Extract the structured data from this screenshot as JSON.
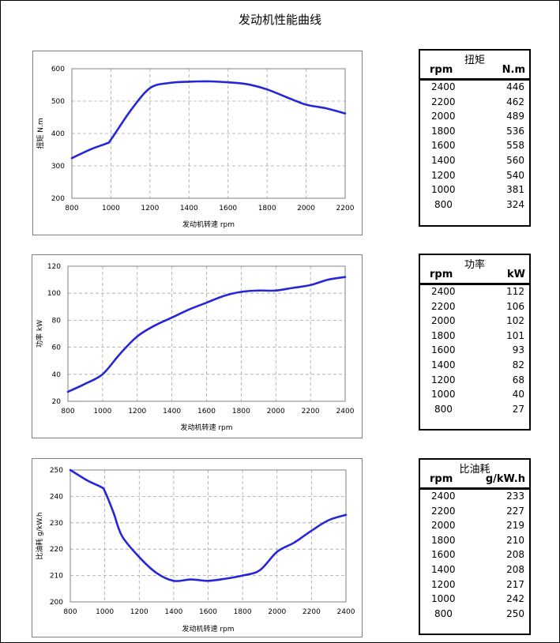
{
  "page_title": "发动机性能曲线",
  "chart_data": [
    {
      "type": "line",
      "ylabel": "扭矩 N.m",
      "xlabel": "发动机转速  rpm",
      "xlim": [
        800,
        2200
      ],
      "ylim": [
        200,
        600
      ],
      "xticks": [
        800,
        1000,
        1200,
        1400,
        1600,
        1800,
        2000,
        2200
      ],
      "yticks": [
        200,
        300,
        400,
        500,
        600
      ],
      "grid": true,
      "color": "#2626d9",
      "series": [
        {
          "x": [
            800,
            900,
            980,
            1000,
            1100,
            1200,
            1300,
            1400,
            1500,
            1600,
            1700,
            1800,
            1900,
            2000,
            2100,
            2200
          ],
          "values": [
            324,
            352,
            370,
            381,
            470,
            540,
            556,
            560,
            561,
            558,
            552,
            536,
            512,
            489,
            478,
            462
          ]
        }
      ],
      "table": {
        "name": "扭矩",
        "col1": "rpm",
        "col2": "N.m",
        "rows": [
          [
            "2400",
            "446"
          ],
          [
            "2200",
            "462"
          ],
          [
            "2000",
            "489"
          ],
          [
            "1800",
            "536"
          ],
          [
            "1600",
            "558"
          ],
          [
            "1400",
            "560"
          ],
          [
            "1200",
            "540"
          ],
          [
            "1000",
            "381"
          ],
          [
            "800",
            "324"
          ]
        ]
      }
    },
    {
      "type": "line",
      "ylabel": "功率  kW",
      "xlabel": "发动机转速  rpm",
      "xlim": [
        800,
        2400
      ],
      "ylim": [
        20,
        120
      ],
      "xticks": [
        800,
        1000,
        1200,
        1400,
        1600,
        1800,
        2000,
        2200,
        2400
      ],
      "yticks": [
        20,
        40,
        60,
        80,
        100,
        120
      ],
      "grid": true,
      "color": "#2626d9",
      "series": [
        {
          "x": [
            800,
            900,
            1000,
            1100,
            1200,
            1300,
            1400,
            1500,
            1600,
            1700,
            1800,
            1900,
            2000,
            2100,
            2200,
            2300,
            2400
          ],
          "values": [
            27,
            33,
            40,
            55,
            68,
            76,
            82,
            88,
            93,
            98,
            101,
            102,
            102,
            104,
            106,
            110,
            112
          ]
        }
      ],
      "table": {
        "name": "功率",
        "col1": "rpm",
        "col2": "kW",
        "rows": [
          [
            "2400",
            "112"
          ],
          [
            "2200",
            "106"
          ],
          [
            "2000",
            "102"
          ],
          [
            "1800",
            "101"
          ],
          [
            "1600",
            "93"
          ],
          [
            "1400",
            "82"
          ],
          [
            "1200",
            "68"
          ],
          [
            "1000",
            "40"
          ],
          [
            "800",
            "27"
          ]
        ]
      }
    },
    {
      "type": "line",
      "ylabel": "比油耗  g/kW.h",
      "xlabel": "发动机转速  rpm",
      "xlim": [
        800,
        2400
      ],
      "ylim": [
        200,
        250
      ],
      "xticks": [
        800,
        1000,
        1200,
        1400,
        1600,
        1800,
        2000,
        2200,
        2400
      ],
      "yticks": [
        200,
        210,
        220,
        230,
        240,
        250
      ],
      "grid": true,
      "color": "#2626d9",
      "series": [
        {
          "x": [
            800,
            900,
            980,
            1000,
            1050,
            1100,
            1200,
            1300,
            1400,
            1500,
            1600,
            1700,
            1800,
            1900,
            2000,
            2100,
            2200,
            2300,
            2400
          ],
          "values": [
            250,
            246,
            243.5,
            242,
            234,
            225,
            217,
            211,
            208,
            208.5,
            208,
            208.8,
            210,
            212,
            219,
            222.5,
            227,
            231,
            233
          ]
        }
      ],
      "table": {
        "name": "比油耗",
        "col1": "rpm",
        "col2": "g/kW.h",
        "rows": [
          [
            "2400",
            "233"
          ],
          [
            "2200",
            "227"
          ],
          [
            "2000",
            "219"
          ],
          [
            "1800",
            "210"
          ],
          [
            "1600",
            "208"
          ],
          [
            "1400",
            "208"
          ],
          [
            "1200",
            "217"
          ],
          [
            "1000",
            "242"
          ],
          [
            "800",
            "250"
          ]
        ]
      }
    }
  ]
}
